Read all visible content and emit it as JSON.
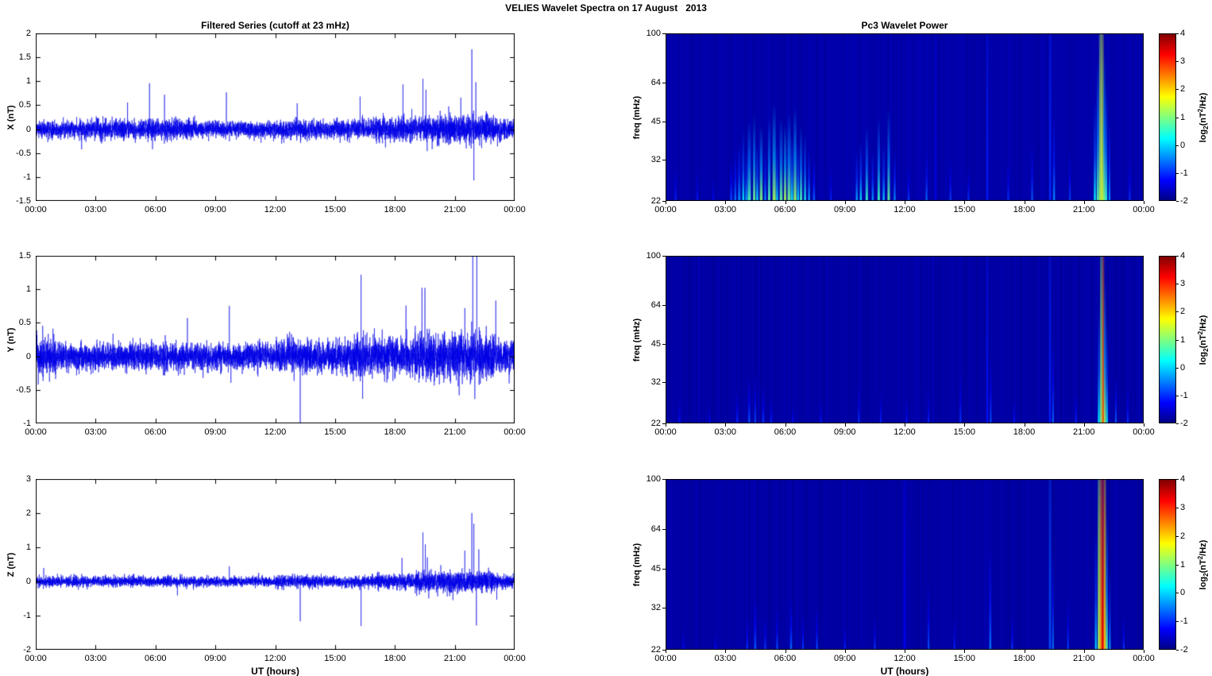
{
  "figure": {
    "title": "VELIES Wavelet Spectra on 17 August   2013"
  },
  "chart_data": [
    {
      "id": "series-x",
      "type": "line",
      "panel": "left",
      "row": 0,
      "title": "Filtered Series (cutoff at 23 mHz)",
      "ylabel": "X (nT)",
      "xlabel": "",
      "ylim": [
        -1.5,
        2
      ],
      "yticks": [
        "2",
        "1.5",
        "1",
        "0.5",
        "0",
        "-0.5",
        "-1",
        "-1.5"
      ],
      "xlim": [
        0,
        24
      ],
      "xtick_hours": [
        0,
        3,
        6,
        9,
        12,
        15,
        18,
        21,
        24
      ],
      "xtick_labels": [
        "00:00",
        "03:00",
        "06:00",
        "09:00",
        "12:00",
        "15:00",
        "18:00",
        "21:00",
        "00:00"
      ],
      "line_color": "#0000E6",
      "noise_envelope": [
        [
          0,
          3,
          0.085
        ],
        [
          3,
          8,
          0.105
        ],
        [
          8,
          12,
          0.085
        ],
        [
          12,
          17,
          0.095
        ],
        [
          17,
          20,
          0.13
        ],
        [
          20,
          23,
          0.15
        ],
        [
          23,
          24,
          0.115
        ]
      ],
      "spikes": [
        [
          2.3,
          -0.42
        ],
        [
          4.6,
          0.55
        ],
        [
          5.7,
          0.78
        ],
        [
          5.85,
          -0.62
        ],
        [
          6.45,
          0.62
        ],
        [
          9.55,
          0.72
        ],
        [
          13.1,
          0.5
        ],
        [
          16.25,
          0.52
        ],
        [
          18.4,
          0.62
        ],
        [
          19.4,
          1.12
        ],
        [
          19.55,
          0.88
        ],
        [
          21.3,
          0.8
        ],
        [
          21.85,
          1.58
        ],
        [
          21.95,
          -1.18
        ],
        [
          22.05,
          1.05
        ]
      ]
    },
    {
      "id": "series-y",
      "type": "line",
      "panel": "left",
      "row": 1,
      "title": "",
      "ylabel": "Y (nT)",
      "xlabel": "",
      "ylim": [
        -1,
        1.5
      ],
      "yticks": [
        "1.5",
        "1",
        "0.5",
        "0",
        "-0.5",
        "-1"
      ],
      "xlim": [
        0,
        24
      ],
      "xtick_hours": [
        0,
        3,
        6,
        9,
        12,
        15,
        18,
        21,
        24
      ],
      "xtick_labels": [
        "00:00",
        "03:00",
        "06:00",
        "09:00",
        "12:00",
        "15:00",
        "18:00",
        "21:00",
        "00:00"
      ],
      "line_color": "#0000E6",
      "noise_envelope": [
        [
          0,
          1,
          0.15
        ],
        [
          1,
          8,
          0.1
        ],
        [
          8,
          12,
          0.095
        ],
        [
          12,
          16,
          0.12
        ],
        [
          16,
          19,
          0.14
        ],
        [
          19,
          23,
          0.17
        ],
        [
          23,
          24,
          0.13
        ]
      ],
      "spikes": [
        [
          0.35,
          0.5
        ],
        [
          2.05,
          -0.45
        ],
        [
          7.6,
          0.45
        ],
        [
          9.7,
          0.85
        ],
        [
          9.78,
          -0.4
        ],
        [
          13.25,
          -0.92
        ],
        [
          16.3,
          1.15
        ],
        [
          16.38,
          -0.55
        ],
        [
          18.55,
          0.72
        ],
        [
          19.35,
          1.05
        ],
        [
          19.5,
          0.92
        ],
        [
          21.5,
          0.7
        ],
        [
          21.9,
          1.35
        ],
        [
          22.0,
          -0.95
        ],
        [
          22.1,
          1.2
        ],
        [
          23.05,
          0.5
        ]
      ]
    },
    {
      "id": "series-z",
      "type": "line",
      "panel": "left",
      "row": 2,
      "title": "",
      "ylabel": "Z (nT)",
      "xlabel": "UT (hours)",
      "ylim": [
        -2,
        3
      ],
      "yticks": [
        "3",
        "2",
        "1",
        "0",
        "-1",
        "-2"
      ],
      "xlim": [
        0,
        24
      ],
      "xtick_hours": [
        0,
        3,
        6,
        9,
        12,
        15,
        18,
        21,
        24
      ],
      "xtick_labels": [
        "00:00",
        "03:00",
        "06:00",
        "09:00",
        "12:00",
        "15:00",
        "18:00",
        "21:00",
        "00:00"
      ],
      "line_color": "#0000E6",
      "noise_envelope": [
        [
          0,
          8,
          0.075
        ],
        [
          8,
          12,
          0.068
        ],
        [
          12,
          17,
          0.085
        ],
        [
          17,
          19,
          0.11
        ],
        [
          19,
          23,
          0.15
        ],
        [
          23,
          24,
          0.1
        ]
      ],
      "spikes": [
        [
          0.4,
          0.45
        ],
        [
          7.1,
          -0.4
        ],
        [
          9.7,
          0.55
        ],
        [
          13.25,
          -1.0
        ],
        [
          16.3,
          -1.28
        ],
        [
          18.35,
          0.55
        ],
        [
          19.4,
          1.5
        ],
        [
          19.52,
          1.1
        ],
        [
          19.62,
          0.8
        ],
        [
          21.5,
          0.9
        ],
        [
          21.85,
          2.2
        ],
        [
          21.95,
          1.7
        ],
        [
          22.08,
          -1.45
        ],
        [
          22.2,
          1.2
        ],
        [
          23.1,
          -0.5
        ]
      ]
    },
    {
      "id": "spec-x",
      "type": "heatmap",
      "panel": "right",
      "row": 0,
      "title": "Pc3 Wavelet Power",
      "ylabel": "freq (mHz)",
      "xlabel": "",
      "yscale": "log",
      "ylim": [
        22,
        100
      ],
      "yticks": [
        "100",
        "64",
        "45",
        "32",
        "22"
      ],
      "xlim": [
        0,
        24
      ],
      "xtick_hours": [
        0,
        3,
        6,
        9,
        12,
        15,
        18,
        21,
        24
      ],
      "xtick_labels": [
        "00:00",
        "03:00",
        "06:00",
        "09:00",
        "12:00",
        "15:00",
        "18:00",
        "21:00",
        "00:00"
      ],
      "clim": [
        -2,
        4
      ],
      "background_value": -1.75,
      "colorbar": {
        "ticks": [
          "4",
          "3",
          "2",
          "1",
          "0",
          "-1",
          "-2"
        ],
        "label_parts": [
          [
            "log",
            "n"
          ],
          [
            "2",
            "sub"
          ],
          [
            "(nT",
            "n"
          ],
          [
            "2",
            "sup"
          ],
          [
            "/Hz)",
            "n"
          ]
        ]
      },
      "streaks": [
        [
          0.5,
          0.04,
          0.2,
          -1.0
        ],
        [
          1.6,
          0.04,
          0.18,
          -1.1
        ],
        [
          2.4,
          0.04,
          0.15,
          -1.2
        ],
        [
          3.3,
          0.06,
          0.25,
          -0.8
        ],
        [
          3.5,
          0.05,
          0.3,
          -0.5
        ],
        [
          3.7,
          0.06,
          0.35,
          -0.3
        ],
        [
          3.9,
          0.05,
          0.42,
          0.2
        ],
        [
          4.05,
          0.05,
          0.3,
          -0.2
        ],
        [
          4.2,
          0.08,
          0.48,
          0.7
        ],
        [
          4.45,
          0.06,
          0.52,
          0.95
        ],
        [
          4.6,
          0.05,
          0.35,
          0.2
        ],
        [
          4.8,
          0.07,
          0.45,
          1.1
        ],
        [
          5.0,
          0.05,
          0.3,
          -0.3
        ],
        [
          5.2,
          0.06,
          0.5,
          0.8
        ],
        [
          5.45,
          0.08,
          0.58,
          1.25
        ],
        [
          5.6,
          0.05,
          0.35,
          0.1
        ],
        [
          5.8,
          0.07,
          0.5,
          0.9
        ],
        [
          6.0,
          0.06,
          0.46,
          1.3
        ],
        [
          6.2,
          0.08,
          0.52,
          1.0
        ],
        [
          6.35,
          0.05,
          0.4,
          0.3
        ],
        [
          6.5,
          0.07,
          0.56,
          1.2
        ],
        [
          6.65,
          0.05,
          0.35,
          0.2
        ],
        [
          6.8,
          0.06,
          0.45,
          0.7
        ],
        [
          7.0,
          0.05,
          0.4,
          0.4
        ],
        [
          7.2,
          0.05,
          0.3,
          -0.2
        ],
        [
          7.45,
          0.05,
          0.25,
          -0.6
        ],
        [
          8.3,
          0.04,
          0.2,
          -1.0
        ],
        [
          9.6,
          0.05,
          0.3,
          -0.2
        ],
        [
          9.8,
          0.05,
          0.35,
          0.1
        ],
        [
          10.1,
          0.06,
          0.45,
          0.55
        ],
        [
          10.4,
          0.05,
          0.3,
          -0.3
        ],
        [
          10.7,
          0.06,
          0.5,
          0.65
        ],
        [
          10.95,
          0.05,
          0.35,
          0.0
        ],
        [
          11.2,
          0.06,
          0.55,
          0.85
        ],
        [
          11.5,
          0.05,
          0.3,
          -0.4
        ],
        [
          12.2,
          0.04,
          0.2,
          -0.8
        ],
        [
          13.1,
          0.04,
          0.3,
          -0.5
        ],
        [
          13.55,
          0.04,
          1.0,
          -1.35
        ],
        [
          14.3,
          0.04,
          0.25,
          -0.8
        ],
        [
          15.2,
          0.04,
          0.2,
          -0.9
        ],
        [
          16.15,
          0.05,
          1.0,
          -1.1
        ],
        [
          17.2,
          0.04,
          0.25,
          -0.9
        ],
        [
          18.4,
          0.04,
          0.35,
          -0.6
        ],
        [
          19.3,
          0.05,
          1.0,
          -1.0
        ],
        [
          19.5,
          0.05,
          0.5,
          -0.4
        ],
        [
          20.3,
          0.04,
          0.3,
          -0.8
        ],
        [
          21.55,
          0.05,
          0.6,
          0.3
        ],
        [
          21.7,
          0.06,
          0.85,
          0.8
        ],
        [
          21.82,
          0.06,
          1.0,
          1.25
        ],
        [
          21.92,
          0.07,
          1.0,
          1.5
        ],
        [
          22.02,
          0.06,
          0.9,
          1.0
        ],
        [
          22.12,
          0.05,
          0.7,
          0.5
        ],
        [
          22.28,
          0.04,
          0.5,
          -0.2
        ],
        [
          23.3,
          0.04,
          0.25,
          -0.9
        ]
      ]
    },
    {
      "id": "spec-y",
      "type": "heatmap",
      "panel": "right",
      "row": 1,
      "title": "",
      "ylabel": "freq (mHz)",
      "xlabel": "",
      "yscale": "log",
      "ylim": [
        22,
        100
      ],
      "yticks": [
        "100",
        "64",
        "45",
        "32",
        "22"
      ],
      "xlim": [
        0,
        24
      ],
      "xtick_hours": [
        0,
        3,
        6,
        9,
        12,
        15,
        18,
        21,
        24
      ],
      "xtick_labels": [
        "00:00",
        "03:00",
        "06:00",
        "09:00",
        "12:00",
        "15:00",
        "18:00",
        "21:00",
        "00:00"
      ],
      "clim": [
        -2,
        4
      ],
      "background_value": -1.78,
      "colorbar": {
        "ticks": [
          "4",
          "3",
          "2",
          "1",
          "0",
          "-1",
          "-2"
        ],
        "label_parts": [
          [
            "log",
            "n"
          ],
          [
            "2",
            "sub"
          ],
          [
            "(nT",
            "n"
          ],
          [
            "2",
            "sup"
          ],
          [
            "/Hz)",
            "n"
          ]
        ]
      },
      "streaks": [
        [
          0.7,
          0.04,
          0.15,
          -1.1
        ],
        [
          2.2,
          0.04,
          0.12,
          -1.2
        ],
        [
          3.6,
          0.05,
          0.2,
          -1.0
        ],
        [
          4.2,
          0.05,
          0.28,
          -0.7
        ],
        [
          4.5,
          0.04,
          0.32,
          -0.75
        ],
        [
          4.9,
          0.05,
          0.22,
          -0.9
        ],
        [
          5.3,
          0.04,
          0.15,
          -1.0
        ],
        [
          6.4,
          0.04,
          0.12,
          -1.15
        ],
        [
          7.8,
          0.04,
          0.15,
          -1.1
        ],
        [
          9.7,
          0.04,
          0.25,
          -0.9
        ],
        [
          10.8,
          0.04,
          0.2,
          -1.0
        ],
        [
          12.1,
          0.04,
          0.15,
          -1.1
        ],
        [
          13.2,
          0.04,
          0.2,
          -1.0
        ],
        [
          14.8,
          0.04,
          0.3,
          -0.9
        ],
        [
          16.15,
          0.05,
          1.0,
          -1.15
        ],
        [
          16.32,
          0.04,
          0.4,
          -0.7
        ],
        [
          17.5,
          0.04,
          0.15,
          -1.1
        ],
        [
          19.3,
          0.05,
          1.0,
          -1.05
        ],
        [
          19.45,
          0.04,
          0.5,
          -0.6
        ],
        [
          20.6,
          0.04,
          0.2,
          -1.0
        ],
        [
          21.75,
          0.05,
          0.7,
          0.2
        ],
        [
          21.87,
          0.06,
          1.0,
          1.0
        ],
        [
          21.96,
          0.06,
          1.0,
          2.6
        ],
        [
          22.06,
          0.05,
          0.85,
          1.2
        ],
        [
          22.16,
          0.04,
          0.6,
          0.2
        ],
        [
          22.6,
          0.04,
          0.3,
          -0.6
        ],
        [
          23.2,
          0.04,
          0.2,
          -0.9
        ]
      ]
    },
    {
      "id": "spec-z",
      "type": "heatmap",
      "panel": "right",
      "row": 2,
      "title": "",
      "ylabel": "freq (mHz)",
      "xlabel": "UT (hours)",
      "yscale": "log",
      "ylim": [
        22,
        100
      ],
      "yticks": [
        "100",
        "64",
        "45",
        "32",
        "22"
      ],
      "xlim": [
        0,
        24
      ],
      "xtick_hours": [
        0,
        3,
        6,
        9,
        12,
        15,
        18,
        21,
        24
      ],
      "xtick_labels": [
        "00:00",
        "03:00",
        "06:00",
        "09:00",
        "12:00",
        "15:00",
        "18:00",
        "21:00",
        "00:00"
      ],
      "clim": [
        -2,
        4
      ],
      "background_value": -1.78,
      "colorbar": {
        "ticks": [
          "4",
          "3",
          "2",
          "1",
          "0",
          "-1",
          "-2"
        ],
        "label_parts": [
          [
            "log",
            "n"
          ],
          [
            "2",
            "sub"
          ],
          [
            "(nT",
            "n"
          ],
          [
            "2",
            "sup"
          ],
          [
            "/Hz)",
            "n"
          ]
        ]
      },
      "streaks": [
        [
          0.9,
          0.04,
          0.12,
          -1.2
        ],
        [
          2.5,
          0.04,
          0.12,
          -1.2
        ],
        [
          4.1,
          0.04,
          0.2,
          -0.9
        ],
        [
          4.5,
          0.05,
          0.3,
          -0.65
        ],
        [
          5.0,
          0.04,
          0.2,
          -0.8
        ],
        [
          5.6,
          0.04,
          0.25,
          -0.7
        ],
        [
          6.3,
          0.05,
          0.3,
          -0.6
        ],
        [
          6.9,
          0.04,
          0.2,
          -0.8
        ],
        [
          7.6,
          0.04,
          0.25,
          -0.7
        ],
        [
          9.0,
          0.04,
          0.15,
          -1.0
        ],
        [
          10.5,
          0.04,
          0.2,
          -0.9
        ],
        [
          12.0,
          0.05,
          1.0,
          -1.3
        ],
        [
          13.2,
          0.04,
          0.4,
          -0.7
        ],
        [
          14.5,
          0.04,
          0.2,
          -1.0
        ],
        [
          16.3,
          0.05,
          0.6,
          -0.5
        ],
        [
          17.4,
          0.04,
          0.2,
          -0.9
        ],
        [
          19.3,
          0.06,
          1.0,
          -0.8
        ],
        [
          19.45,
          0.04,
          0.6,
          -0.5
        ],
        [
          20.2,
          0.04,
          0.3,
          -0.8
        ],
        [
          21.6,
          0.05,
          0.7,
          0.0
        ],
        [
          21.75,
          0.06,
          1.0,
          1.2
        ],
        [
          21.85,
          0.07,
          1.0,
          2.2
        ],
        [
          21.95,
          0.07,
          1.0,
          3.3
        ],
        [
          22.05,
          0.06,
          1.0,
          2.0
        ],
        [
          22.15,
          0.05,
          0.8,
          0.8
        ],
        [
          22.3,
          0.04,
          0.5,
          -0.2
        ],
        [
          23.0,
          0.04,
          0.2,
          -0.9
        ]
      ]
    }
  ]
}
